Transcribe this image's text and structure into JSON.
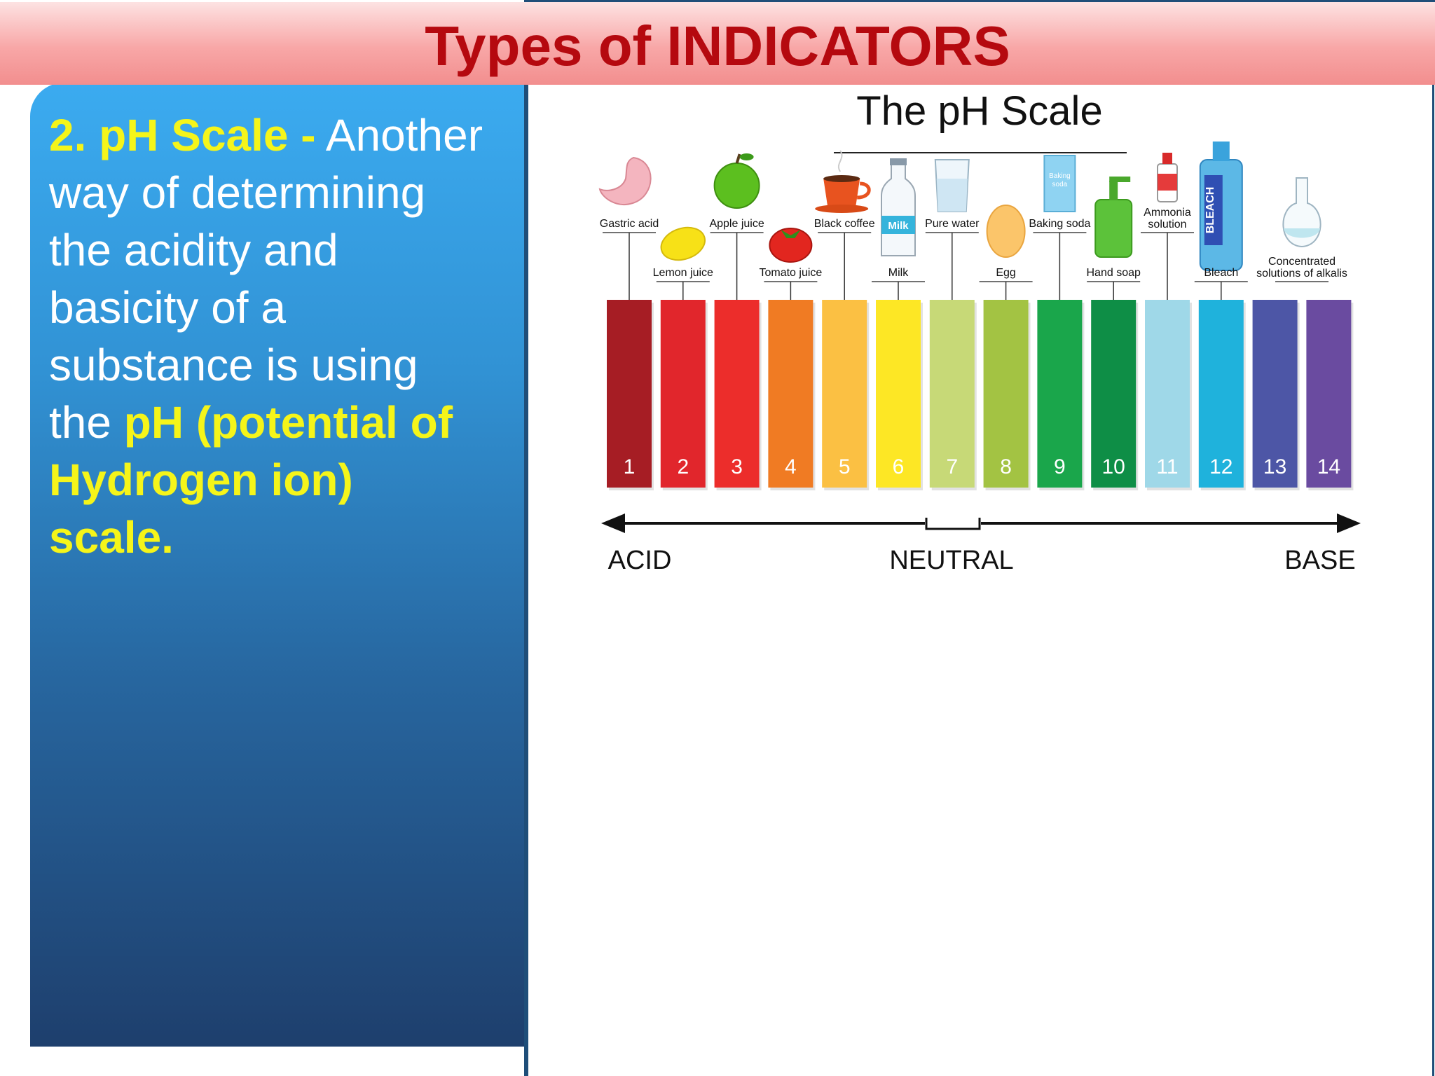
{
  "slide": {
    "title": "Types of INDICATORS"
  },
  "left_panel": {
    "heading": "2. pH Scale -",
    "body_before": "Another way of determining the acidity and basicity of a substance is using the",
    "body_highlight": "pH (potential of Hydrogen ion) scale."
  },
  "chart_data": {
    "type": "bar",
    "title": "The pH Scale",
    "categories": [
      "1",
      "2",
      "3",
      "4",
      "5",
      "6",
      "7",
      "8",
      "9",
      "10",
      "11",
      "12",
      "13",
      "14"
    ],
    "colors": [
      "#a61d24",
      "#e1262c",
      "#ec2d2b",
      "#f07b23",
      "#fbc043",
      "#fde725",
      "#c7d977",
      "#a3c343",
      "#1aa64b",
      "#0e8e46",
      "#9fd8e8",
      "#1fb2dc",
      "#4d56a6",
      "#6a4ba0"
    ],
    "substances": [
      {
        "label": "Gastric acid",
        "ph": 1,
        "row": "upper"
      },
      {
        "label": "Lemon juice",
        "ph": 2,
        "row": "lower"
      },
      {
        "label": "Apple juice",
        "ph": 3,
        "row": "upper"
      },
      {
        "label": "Tomato juice",
        "ph": 4,
        "row": "lower"
      },
      {
        "label": "Black coffee",
        "ph": 5,
        "row": "upper"
      },
      {
        "label": "Milk",
        "ph": 6,
        "row": "lower"
      },
      {
        "label": "Pure water",
        "ph": 7,
        "row": "upper"
      },
      {
        "label": "Egg",
        "ph": 8,
        "row": "lower"
      },
      {
        "label": "Baking soda",
        "ph": 9,
        "row": "upper"
      },
      {
        "label": "Hand soap",
        "ph": 10,
        "row": "lower"
      },
      {
        "label": "Ammonia solution",
        "ph": 11,
        "row": "upper"
      },
      {
        "label": "Bleach",
        "ph": 12,
        "row": "lower"
      },
      {
        "label": "Concentrated solutions of alkalis",
        "ph": 13.5,
        "row": "lower"
      }
    ],
    "pictogram_text": {
      "milk": "Milk",
      "bleach": "BLEACH",
      "baking_soda": "Baking soda",
      "ammonia": "Ammonia solution"
    },
    "axis": {
      "left_label": "ACID",
      "center_label": "NEUTRAL",
      "right_label": "BASE"
    }
  }
}
